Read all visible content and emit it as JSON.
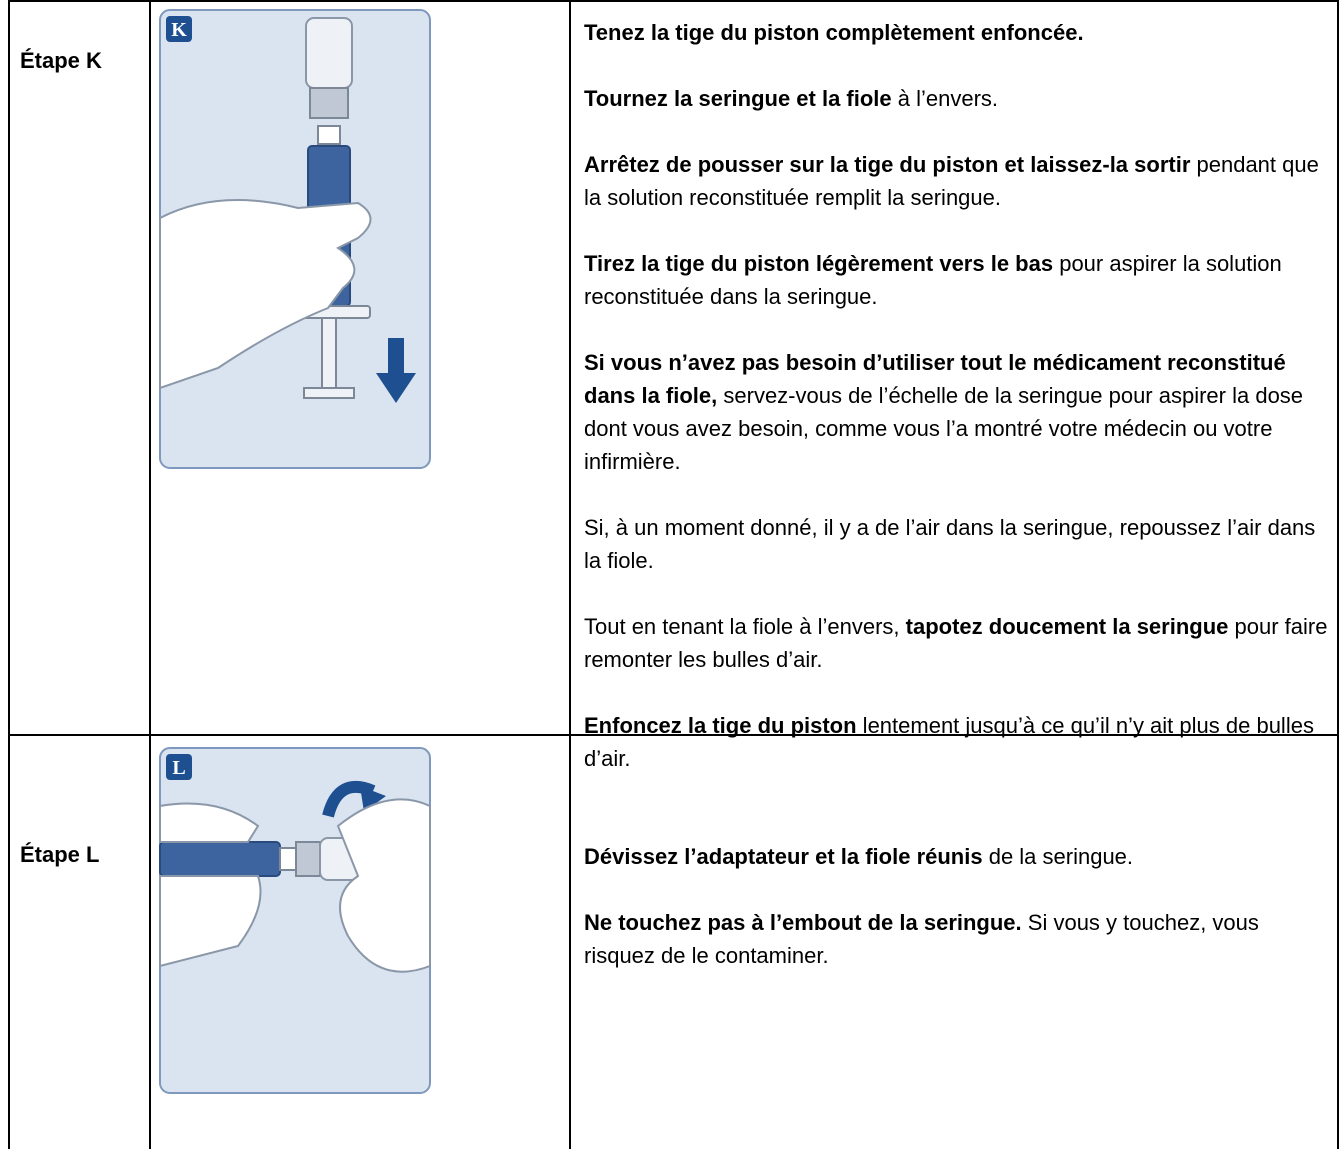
{
  "table": {
    "rows": [
      {
        "label": "Étape K",
        "badge": "K",
        "paragraphs": [
          [
            {
              "text": "Tenez la tige du piston complètement enfoncée.",
              "bold": true
            }
          ],
          [
            {
              "text": "Tournez la seringue et la fiole",
              "bold": true
            },
            {
              "text": " à l’envers.",
              "bold": false
            }
          ],
          [
            {
              "text": "Arrêtez de pousser sur la tige du piston et laissez-la sortir",
              "bold": true
            },
            {
              "text": " pendant que la solution reconstituée remplit la seringue.",
              "bold": false
            }
          ],
          [
            {
              "text": "Tirez la tige du piston légèrement vers le bas",
              "bold": true
            },
            {
              "text": " pour aspirer la solution reconstituée dans la seringue.",
              "bold": false
            }
          ],
          [
            {
              "text": "Si vous n’avez pas besoin d’utiliser tout le médicament reconstitué dans la fiole,",
              "bold": true
            },
            {
              "text": " servez-vous de l’échelle de la seringue pour aspirer la dose dont vous avez besoin, comme vous l’a montré votre médecin ou votre infirmière.",
              "bold": false
            }
          ],
          [
            {
              "text": "Si, à un moment donné, il y a de l’air dans la seringue, repoussez l’air dans la fiole.",
              "bold": false
            }
          ],
          [
            {
              "text": "Tout en tenant la fiole à l’envers, ",
              "bold": false
            },
            {
              "text": "tapotez doucement la seringue",
              "bold": true
            },
            {
              "text": " pour faire remonter les bulles d’air.",
              "bold": false
            }
          ],
          [
            {
              "text": "Enfoncez la tige du piston",
              "bold": true
            },
            {
              "text": " lentement jusqu’à ce qu’il n’y ait plus de bulles d’air.",
              "bold": false
            }
          ]
        ]
      },
      {
        "label": "Étape L",
        "badge": "L",
        "paragraphs": [
          [
            {
              "text": "Dévissez l’adaptateur et la fiole réunis",
              "bold": true
            },
            {
              "text": " de la seringue.",
              "bold": false
            }
          ],
          [
            {
              "text": "Ne touchez pas à l’embout de la seringue.",
              "bold": true
            },
            {
              "text": " Si vous y touchez, vous risquez de le contaminer.",
              "bold": false
            }
          ]
        ]
      }
    ]
  }
}
